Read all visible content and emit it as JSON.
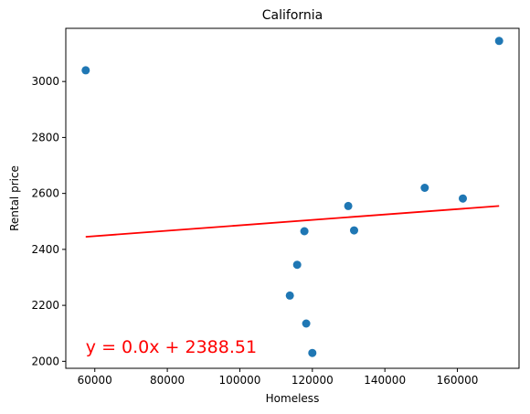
{
  "chart_data": {
    "type": "scatter",
    "title": "California",
    "xlabel": "Homeless",
    "ylabel": "Rental price",
    "xlim": [
      52000,
      177000
    ],
    "ylim": [
      1975,
      3190
    ],
    "xticks": [
      60000,
      80000,
      100000,
      120000,
      140000,
      160000
    ],
    "yticks": [
      2000,
      2200,
      2400,
      2600,
      2800,
      3000
    ],
    "grid": false,
    "points": {
      "color": "#1f77b4",
      "x": [
        57500,
        113800,
        115800,
        117800,
        118300,
        120000,
        129900,
        131500,
        151000,
        161500,
        171500
      ],
      "y": [
        3040,
        2235,
        2345,
        2465,
        2135,
        2030,
        2555,
        2468,
        2620,
        2582,
        3145
      ]
    },
    "regression": {
      "color": "#ff0000",
      "x": [
        57500,
        171500
      ],
      "y": [
        2445,
        2555
      ]
    },
    "annotation": {
      "text": "y = 0.0x + 2388.51",
      "color": "#ff0000",
      "x": 57500,
      "y": 2030
    }
  }
}
